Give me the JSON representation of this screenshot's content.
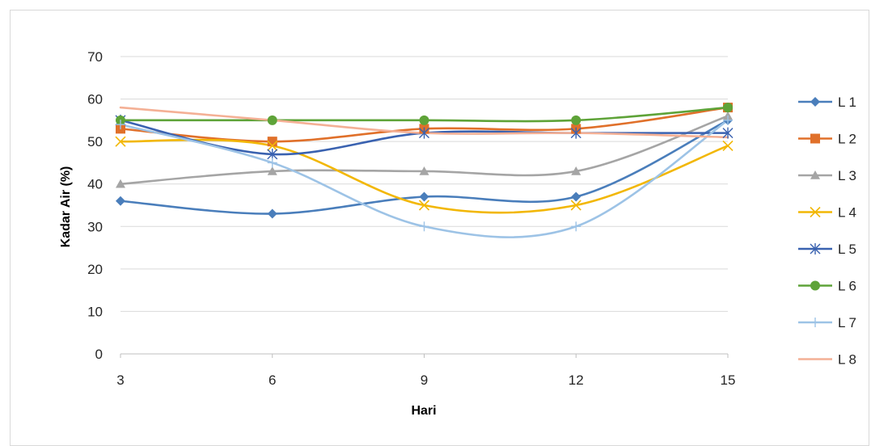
{
  "chart_data": {
    "type": "line",
    "xlabel": "Hari",
    "ylabel": "Kadar Air (%)",
    "x": [
      3,
      6,
      9,
      12,
      15
    ],
    "x_tick_labels": [
      "3",
      "6",
      "9",
      "12",
      "15"
    ],
    "ylim": [
      0,
      70
    ],
    "y_ticks": [
      0,
      10,
      20,
      30,
      40,
      50,
      60,
      70
    ],
    "grid": "horizontal",
    "legend_position": "right",
    "smooth": true,
    "series": [
      {
        "name": "L 1",
        "color": "#4a7ebb",
        "marker": "diamond",
        "values": [
          36,
          33,
          37,
          37,
          55
        ]
      },
      {
        "name": "L 2",
        "color": "#e0702a",
        "marker": "square",
        "values": [
          53,
          50,
          53,
          53,
          58
        ]
      },
      {
        "name": "L 3",
        "color": "#a5a5a5",
        "marker": "triangle",
        "values": [
          40,
          43,
          43,
          43,
          56
        ]
      },
      {
        "name": "L 4",
        "color": "#f2b705",
        "marker": "x",
        "values": [
          50,
          49,
          35,
          35,
          49
        ]
      },
      {
        "name": "L 5",
        "color": "#3a62b0",
        "marker": "star",
        "values": [
          55,
          47,
          52,
          52,
          52
        ]
      },
      {
        "name": "L 6",
        "color": "#5ea338",
        "marker": "circle",
        "values": [
          55,
          55,
          55,
          55,
          58
        ]
      },
      {
        "name": "L 7",
        "color": "#9dc3e6",
        "marker": "plus",
        "values": [
          54,
          45,
          30,
          30,
          55
        ]
      },
      {
        "name": "L 8",
        "color": "#f4b095",
        "marker": "none",
        "values": [
          58,
          55,
          52,
          52,
          51
        ]
      }
    ]
  }
}
